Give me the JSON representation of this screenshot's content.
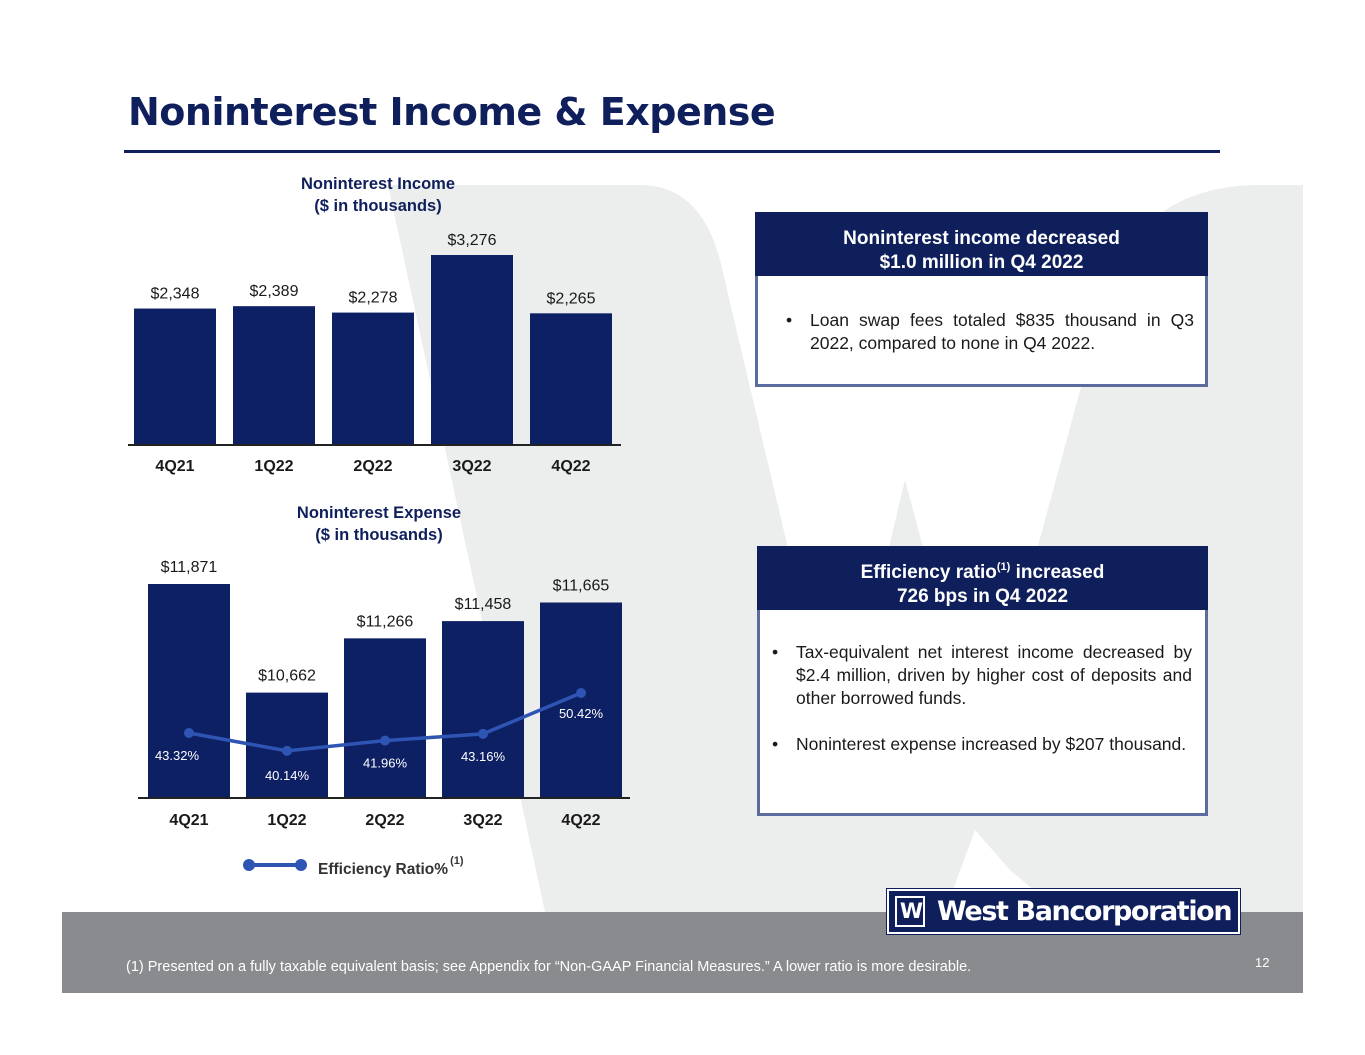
{
  "title": "Noninterest Income & Expense",
  "colors": {
    "navy": "#0f1f5c",
    "bar": "#0e2064",
    "line": "#2e55b4",
    "card_border": "#5c6b9e",
    "footer": "#8a8b8e",
    "watermark": "#eceded"
  },
  "chart_data": [
    {
      "type": "bar",
      "title": "Noninterest Income",
      "subtitle": "($ in thousands)",
      "categories": [
        "4Q21",
        "1Q22",
        "2Q22",
        "3Q22",
        "4Q22"
      ],
      "values": [
        2348,
        2389,
        2278,
        3276,
        2265
      ],
      "value_labels": [
        "$2,348",
        "$2,389",
        "$2,278",
        "$3,276",
        "$2,265"
      ],
      "ylim": [
        0,
        3276
      ]
    },
    {
      "type": "bar",
      "title": "Noninterest Expense",
      "subtitle": "($ in thousands)",
      "categories": [
        "4Q21",
        "1Q22",
        "2Q22",
        "3Q22",
        "4Q22"
      ],
      "values": [
        11871,
        10662,
        11266,
        11458,
        11665
      ],
      "value_labels": [
        "$11,871",
        "$10,662",
        "$11,266",
        "$11,458",
        "$11,665"
      ],
      "ylim": [
        9500,
        11871
      ],
      "series": [
        {
          "name": "Efficiency Ratio%",
          "type": "line",
          "values": [
            43.32,
            40.14,
            41.96,
            43.16,
            50.42
          ],
          "value_labels": [
            "43.32%",
            "40.14%",
            "41.96%",
            "43.16%",
            "50.42%"
          ],
          "ylim": [
            30,
            80
          ]
        }
      ],
      "legend": {
        "label": "Efficiency Ratio%",
        "footnote_marker": "(1)"
      }
    }
  ],
  "cards": [
    {
      "heading_line1": "Noninterest income decreased",
      "heading_line2": "$1.0 million in Q4 2022",
      "bullets": [
        "Loan swap fees totaled $835 thousand in Q3 2022, compared to none in Q4 2022."
      ]
    },
    {
      "heading_line1_a": "Efficiency ratio",
      "heading_line1_sup": "(1)",
      "heading_line1_b": " increased",
      "heading_line2": "726 bps in Q4 2022",
      "bullets": [
        "Tax-equivalent net interest income decreased by $2.4 million, driven by higher cost of deposits and other borrowed funds.",
        "Noninterest expense increased by $207 thousand."
      ]
    }
  ],
  "logo": {
    "mark": "W",
    "name": "West Bancorporation"
  },
  "footnote": "(1) Presented on a fully taxable equivalent basis; see Appendix for “Non-GAAP Financial Measures.” A lower ratio is more desirable.",
  "page_number": "12"
}
